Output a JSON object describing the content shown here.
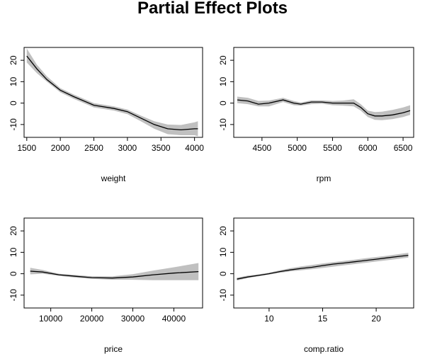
{
  "title": "Partial Effect Plots",
  "chart_data": [
    {
      "type": "line",
      "xlabel": "weight",
      "ylabel": "",
      "xlim": [
        1460,
        4120
      ],
      "ylim": [
        -16,
        26
      ],
      "xticks": [
        1500,
        2000,
        2500,
        3000,
        3500,
        4000
      ],
      "yticks": [
        -10,
        0,
        10,
        20
      ],
      "band_color": "#c0c0c0",
      "line_color": "#000000",
      "x": [
        1500,
        1650,
        1800,
        2000,
        2200,
        2500,
        2800,
        3000,
        3200,
        3400,
        3600,
        3800,
        4000,
        4050
      ],
      "y": [
        22,
        16,
        11,
        6,
        3,
        -1,
        -2.5,
        -4,
        -7,
        -10,
        -12,
        -12.5,
        -12,
        -12
      ],
      "lower": [
        19,
        14,
        10,
        5,
        2,
        -2,
        -3.5,
        -5.2,
        -8.5,
        -12,
        -14.5,
        -15,
        -15,
        -15.5
      ],
      "upper": [
        25.5,
        18,
        12.5,
        7,
        4,
        0,
        -1.5,
        -3,
        -5.8,
        -8.5,
        -10,
        -10.2,
        -9,
        -8.5
      ]
    },
    {
      "type": "line",
      "xlabel": "rpm",
      "ylabel": "",
      "xlim": [
        4100,
        6650
      ],
      "ylim": [
        -16,
        26
      ],
      "xticks": [
        4500,
        5000,
        5500,
        6000,
        6500
      ],
      "yticks": [
        -10,
        0,
        10,
        20
      ],
      "band_color": "#c0c0c0",
      "line_color": "#000000",
      "x": [
        4150,
        4300,
        4450,
        4600,
        4800,
        4950,
        5050,
        5200,
        5350,
        5500,
        5650,
        5800,
        5900,
        6000,
        6100,
        6200,
        6350,
        6500,
        6600
      ],
      "y": [
        1.5,
        1,
        -0.5,
        0,
        1.5,
        0,
        -0.5,
        0.5,
        0.5,
        0,
        0,
        0,
        -2,
        -5,
        -6,
        -6,
        -5.5,
        -4.5,
        -3.5
      ],
      "lower": [
        0,
        -0.5,
        -1.5,
        -1.5,
        0.5,
        -1,
        -1.2,
        -0.5,
        -0.3,
        -1,
        -1.2,
        -1.5,
        -3.5,
        -6.5,
        -7.8,
        -8,
        -7.5,
        -6.5,
        -5.5
      ],
      "upper": [
        3,
        2.5,
        1,
        1.2,
        2.5,
        1,
        0.3,
        1.3,
        1.3,
        1,
        1.2,
        1.8,
        -0.5,
        -3.5,
        -4.2,
        -4,
        -3.2,
        -2,
        -1
      ]
    },
    {
      "type": "line",
      "xlabel": "price",
      "ylabel": "",
      "xlim": [
        3500,
        47000
      ],
      "ylim": [
        -16,
        26
      ],
      "xticks": [
        10000,
        20000,
        30000,
        40000
      ],
      "yticks": [
        -10,
        0,
        10,
        20
      ],
      "band_color": "#c0c0c0",
      "line_color": "#000000",
      "x": [
        5000,
        8000,
        12000,
        16000,
        20000,
        25000,
        30000,
        35000,
        40000,
        46000
      ],
      "y": [
        1.2,
        0.8,
        -0.5,
        -1.2,
        -1.8,
        -2,
        -1.5,
        -0.5,
        0.3,
        1
      ],
      "lower": [
        -0.3,
        0,
        -1,
        -1.8,
        -2.4,
        -2.8,
        -2.8,
        -3,
        -3,
        -3
      ],
      "upper": [
        2.8,
        1.8,
        0,
        -0.6,
        -1.2,
        -1.2,
        -0.2,
        1.5,
        3,
        5
      ]
    },
    {
      "type": "line",
      "xlabel": "comp.ratio",
      "ylabel": "",
      "xlim": [
        6.7,
        23.5
      ],
      "ylim": [
        -16,
        26
      ],
      "xticks": [
        10,
        15,
        20
      ],
      "yticks": [
        -10,
        0,
        10,
        20
      ],
      "band_color": "#c0c0c0",
      "line_color": "#000000",
      "x": [
        7,
        8,
        9,
        10,
        11,
        12,
        13,
        14,
        15,
        16,
        17,
        18,
        19,
        20,
        21,
        22,
        23
      ],
      "y": [
        -2.5,
        -1.5,
        -0.8,
        0,
        1,
        1.8,
        2.5,
        3,
        3.8,
        4.5,
        5,
        5.6,
        6.2,
        6.8,
        7.4,
        8,
        8.6
      ],
      "lower": [
        -3.2,
        -2,
        -1.2,
        -0.4,
        0.4,
        1.1,
        1.6,
        2.1,
        2.7,
        3.3,
        3.9,
        4.5,
        5.1,
        5.7,
        6.3,
        6.9,
        7.5
      ],
      "upper": [
        -1.8,
        -0.9,
        -0.3,
        0.5,
        1.6,
        2.6,
        3.4,
        4.1,
        4.8,
        5.4,
        6,
        6.6,
        7.2,
        7.8,
        8.4,
        9.1,
        9.8
      ]
    }
  ]
}
